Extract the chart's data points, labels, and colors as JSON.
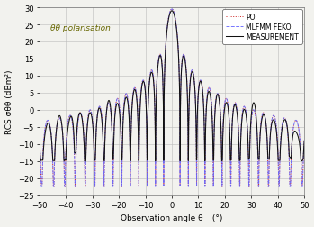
{
  "annotation": "θθ polarisation",
  "xlabel": "Observation angle θ_  (°)",
  "ylabel": "RCS σθθ (dBm²)",
  "xlim": [
    -50,
    50
  ],
  "ylim": [
    -25,
    30
  ],
  "xticks": [
    -50,
    -40,
    -30,
    -20,
    -10,
    0,
    10,
    20,
    30,
    40,
    50
  ],
  "yticks": [
    -25,
    -20,
    -15,
    -10,
    -5,
    0,
    5,
    10,
    15,
    20,
    25,
    30
  ],
  "legend": [
    "MEASUREMENT",
    "MLFMM FEKO",
    "PO"
  ],
  "meas_color": "#111111",
  "feko_color": "#6666ff",
  "po_color": "#cc2222",
  "bg_color": "#f2f2ee",
  "grid_color": "#bbbbbb",
  "peak_dB": 29.5,
  "n_lobes": 18.5,
  "meas_floor": -15.0,
  "sim_floor": -22.5
}
